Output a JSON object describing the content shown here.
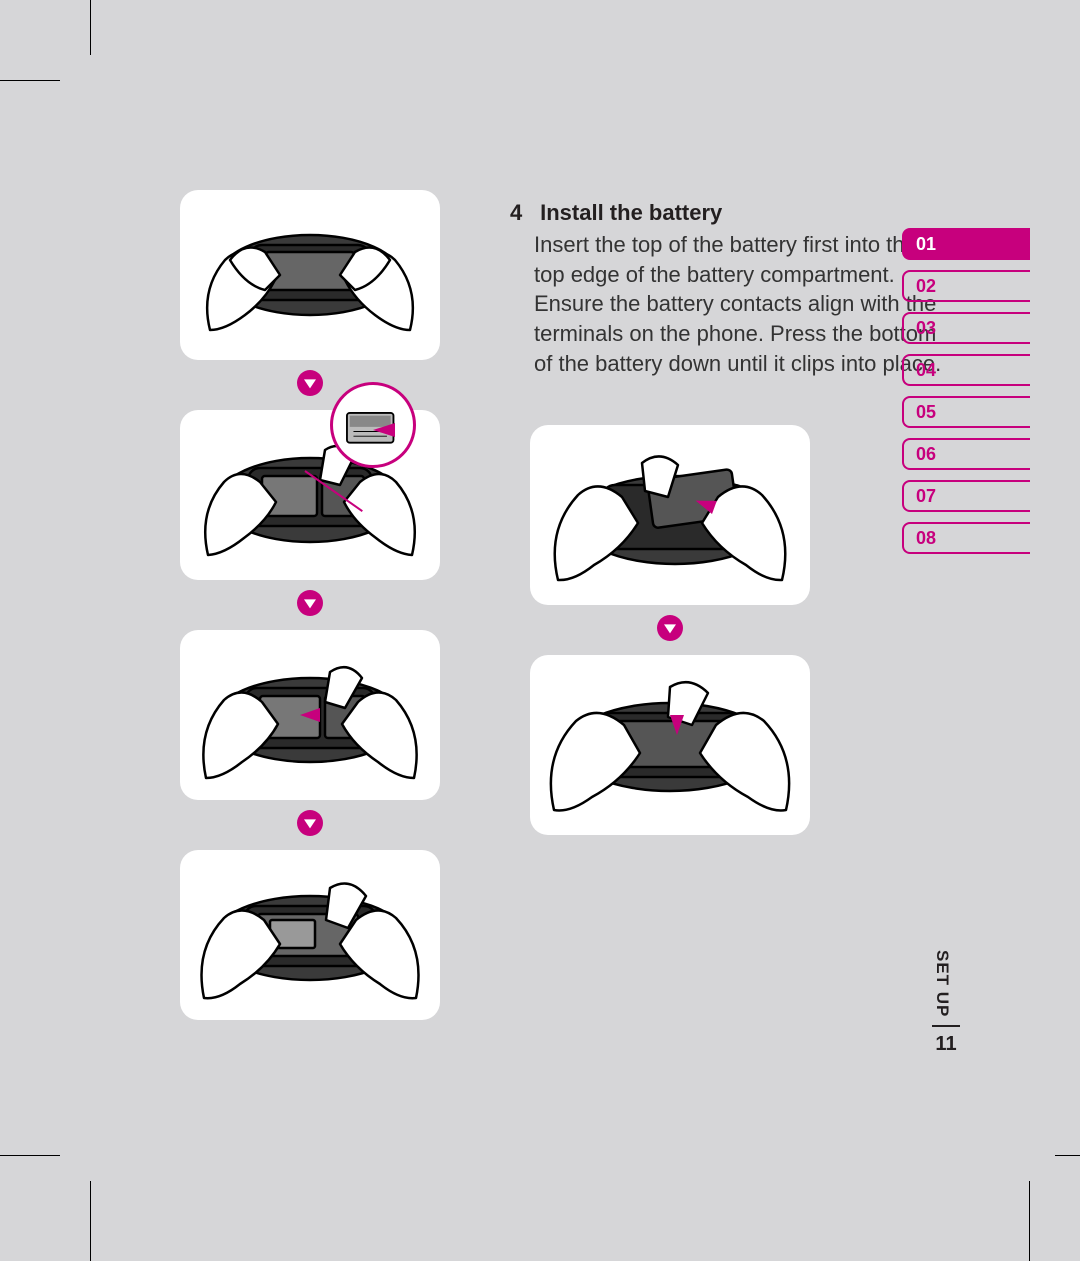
{
  "accent_color": "#c7007d",
  "page_bg": "#d6d6d8",
  "text_color": "#231f20",
  "step": {
    "number": "4",
    "title": "Install the battery",
    "body": "Insert the top of the battery first into the top edge of the battery compartment. Ensure the battery contacts align with the terminals on the phone. Press the bottom of the battery down until it clips into place."
  },
  "tabs": {
    "items": [
      "01",
      "02",
      "03",
      "04",
      "05",
      "06",
      "07",
      "08"
    ],
    "active_index": 0
  },
  "footer": {
    "section": "SET UP",
    "page": "11"
  },
  "illustrations": {
    "left_count": 4,
    "right_count": 2,
    "arrow_between": true
  }
}
